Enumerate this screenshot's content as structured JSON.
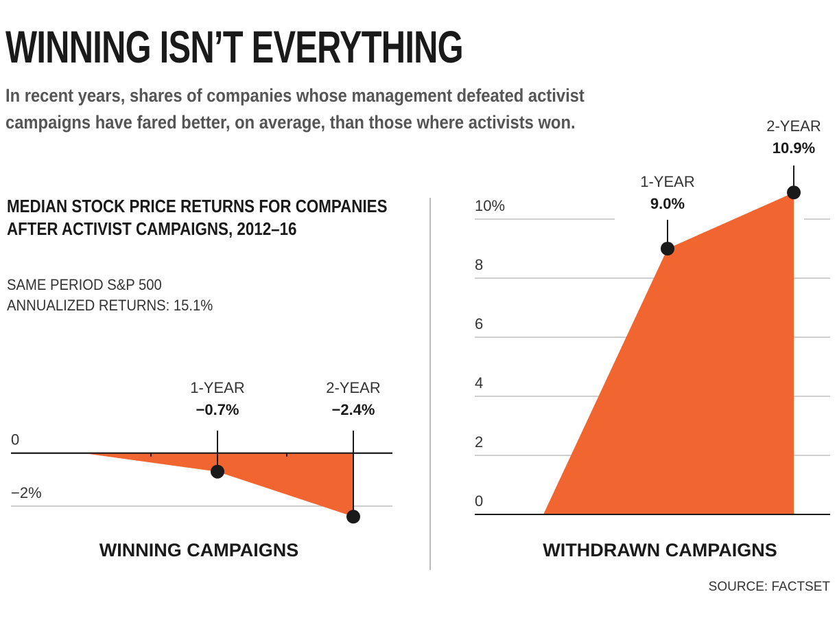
{
  "title": "WINNING ISN’T EVERYTHING",
  "subtitle": "In recent years, shares of companies whose management defeated activist campaigns have fared better, on average, than those where activists won.",
  "chart_heading": "MEDIAN STOCK PRICE RETURNS FOR COMPANIES AFTER ACTIVIST CAMPAIGNS, 2012–16",
  "note": {
    "line1": "SAME PERIOD S&P 500",
    "line2": "ANNUALIZED RETURNS: 15.1%"
  },
  "source": "SOURCE: FACTSET",
  "colors": {
    "area": "#f06530",
    "marker": "#1a1a1a",
    "grid": "#bdbdbd",
    "axis": "#1a1a1a"
  },
  "chart_data": [
    {
      "type": "area",
      "title": "WINNING CAMPAIGNS",
      "unit": "%",
      "x": [
        0,
        1,
        2
      ],
      "categories": [
        "",
        "1-YEAR",
        "2-YEAR"
      ],
      "values": [
        0,
        -0.7,
        -2.4
      ],
      "value_labels": [
        "",
        "−0.7%",
        "−2.4%"
      ],
      "ylim": [
        -2.6,
        0.9
      ],
      "y_ticks": [
        {
          "value": 0,
          "label": "0"
        },
        {
          "value": -2,
          "label": "−2%"
        }
      ]
    },
    {
      "type": "area",
      "title": "WITHDRAWN CAMPAIGNS",
      "unit": "%",
      "x": [
        0,
        1,
        2
      ],
      "categories": [
        "",
        "1-YEAR",
        "2-YEAR"
      ],
      "values": [
        0,
        9.0,
        10.9
      ],
      "value_labels": [
        "",
        "9.0%",
        "10.9%"
      ],
      "ylim": [
        0,
        12
      ],
      "y_ticks": [
        {
          "value": 0,
          "label": "0"
        },
        {
          "value": 2,
          "label": "2"
        },
        {
          "value": 4,
          "label": "4"
        },
        {
          "value": 6,
          "label": "6"
        },
        {
          "value": 8,
          "label": "8"
        },
        {
          "value": 10,
          "label": "10%"
        }
      ]
    }
  ]
}
